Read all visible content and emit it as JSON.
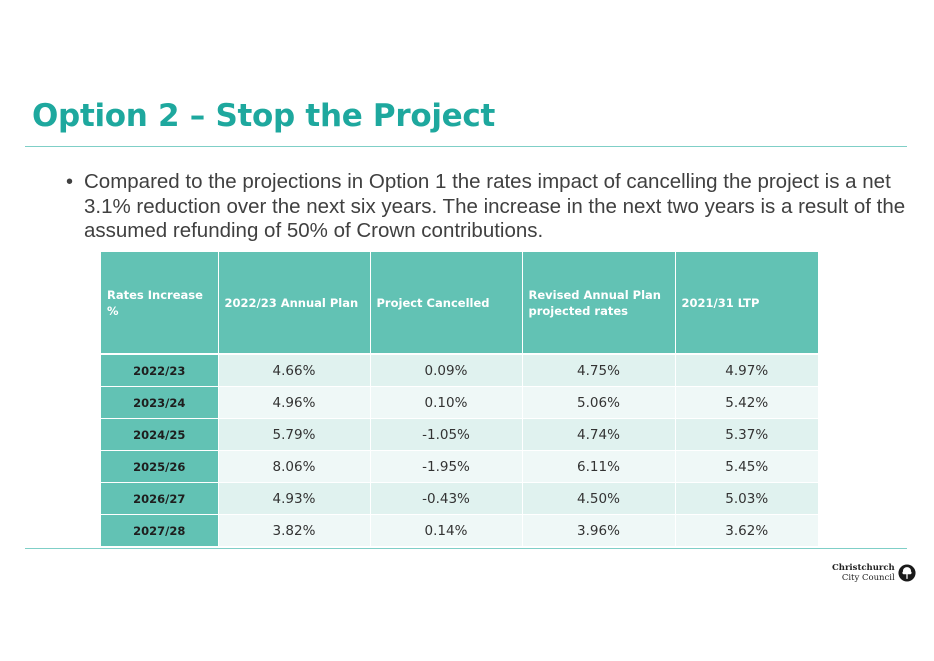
{
  "slide": {
    "title": "Option 2 – Stop the Project",
    "bullet_marker": "•",
    "bullet_text": "Compared to the projections in Option 1 the rates impact of cancelling the project is a net 3.1% reduction over the next six years.  The increase in the next two years is a result of the assumed refunding of 50% of Crown contributions."
  },
  "table": {
    "headers": [
      "Rates Increase %",
      "2022/23 Annual Plan",
      "Project Cancelled",
      "Revised Annual Plan projected rates",
      "2021/31 LTP"
    ],
    "rows": [
      [
        "2022/23",
        "4.66%",
        "0.09%",
        "4.75%",
        "4.97%"
      ],
      [
        "2023/24",
        "4.96%",
        "0.10%",
        "5.06%",
        "5.42%"
      ],
      [
        "2024/25",
        "5.79%",
        "-1.05%",
        "4.74%",
        "5.37%"
      ],
      [
        "2025/26",
        "8.06%",
        "-1.95%",
        "6.11%",
        "5.45%"
      ],
      [
        "2026/27",
        "4.93%",
        "-0.43%",
        "4.50%",
        "5.03%"
      ],
      [
        "2027/28",
        "3.82%",
        "0.14%",
        "3.96%",
        "3.62%"
      ]
    ]
  },
  "logo": {
    "line1": "Christchurch",
    "line2": "City Council",
    "icon": "tree-circle-icon"
  },
  "colors": {
    "title": "#1ea89e",
    "accent": "#62c2b4",
    "rule": "#7fcfc7",
    "row_light": "#e0f2ef",
    "row_lighter": "#eff8f7"
  }
}
